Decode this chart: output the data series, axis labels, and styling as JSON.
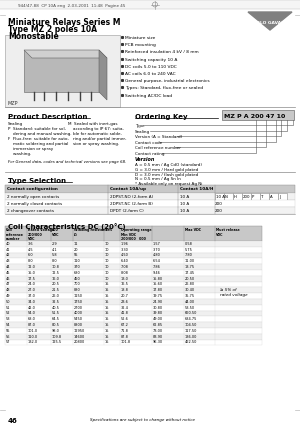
{
  "title_line1": "Miniature Relays Series M",
  "title_line2": "Type MZ 2 poles 10A",
  "title_line3": "Monostable",
  "header_file": "944/47-88  CP 10A eng  2-03-2001  11:48  Pagine 45",
  "logo_text": "CARLO GAVAZZI",
  "bullet_points": [
    "Miniature size",
    "PCB mounting",
    "Reinforced insulation 4 kV / 8 mm",
    "Switching capacity 10 A",
    "DC coils 5.0 to 110 VDC",
    "AC coils 6.0 to 240 VAC",
    "General purpose, industrial electronics",
    "Types: Standard, flux-free or sealed",
    "Switching AC/DC load"
  ],
  "relay_label": "MZP",
  "product_desc_title": "Product Description",
  "product_desc_col1": [
    "Sealing",
    "P  Standard: suitable for sol-",
    "    dering and manual washing.",
    "F  Flux-free: suitable for auto-",
    "    matic soldering and partial",
    "    immersion or spray",
    "    washing."
  ],
  "product_desc_col2": [
    "M  Sealed with inert-gas",
    "    according to IP 67: suita-",
    "    ble for automatic solde-",
    "    ring and/or partial immer-",
    "    sion or spray washing."
  ],
  "general_note": "For General data, codes and technical versions see page 68.",
  "ordering_key_title": "Ordering Key",
  "ordering_key_example": "MZ P A 200 47 10",
  "ordering_fields": [
    "Type",
    "Sealing",
    "Version (A = Standard)",
    "Contact code",
    "Coil reference number",
    "Contact rating"
  ],
  "version_title": "Version",
  "version_items": [
    "A = 0.5 mm / Ag CdO (standard)",
    "G = 3.0 mm / Hard gold plated",
    "D = 3.0 mm / flash gold plated",
    "N = 0.5 mm / Ag Sn In",
    "* Available only on request Ag Ni"
  ],
  "type_sel_title": "Type Selection",
  "type_col1_header": "Contact configuration",
  "type_col2_header": "Contact 10A/up",
  "type_col3_header": "Contact 10A/H",
  "type_sel_rows": [
    [
      "2 normally open contacts",
      "2DPST-NO (2-form A)",
      "10 A",
      "10 A",
      "N",
      "H",
      "200",
      "P",
      "T",
      "A",
      "J"
    ],
    [
      "2 normally closed contacts",
      "2DPST-NC (2-form B)",
      "10 A",
      "200",
      "",
      "",
      "",
      "",
      "",
      "",
      ""
    ],
    [
      "2 changeover contacts",
      "DPDT (2-form C)",
      "10 A",
      "200",
      "",
      "",
      "",
      "",
      "",
      "",
      ""
    ]
  ],
  "coil_char_title": "Coil Characteristics DC (20°C)",
  "coil_col_headers": [
    "Coil\nreference\nnumber",
    "Rated Voltage\n200/000\nVDC",
    "000\nVDC",
    "Winding resistance\nΩ",
    "± %",
    "Operating range\nMin VDC\n200/000",
    "000",
    "Max VDC",
    "Must release\nVDC"
  ],
  "coil_rows": [
    [
      "40",
      "3.6",
      "2.9",
      "11",
      "10",
      "1.96",
      "1.57",
      "0.58"
    ],
    [
      "41",
      "4.5",
      "4.1",
      "20",
      "10",
      "3.30",
      "3.70",
      "5.75"
    ],
    [
      "42",
      "6.0",
      "5.8",
      "55",
      "10",
      "4.50",
      "4.80",
      "7.80"
    ],
    [
      "43",
      "8.0",
      "8.0",
      "110",
      "10",
      "6.40",
      "6.54",
      "11.00"
    ],
    [
      "44",
      "12.0",
      "10.8",
      "370",
      "10",
      "7.08",
      "7.86",
      "13.75"
    ],
    [
      "45",
      "15.0",
      "12.5",
      "680",
      "10",
      "8.08",
      "9.46",
      "17.45"
    ],
    [
      "46",
      "17.5",
      "16.0",
      "450",
      "10",
      "13.0",
      "15.80",
      "20.50"
    ],
    [
      "47",
      "24.0",
      "20.5",
      "700",
      "15",
      "16.5",
      "15.60",
      "26.80"
    ],
    [
      "48",
      "27.0",
      "21.5",
      "880",
      "15",
      "18.8",
      "17.80",
      "30.40"
    ],
    [
      "49",
      "37.0",
      "26.0",
      "1150",
      "15",
      "20.7",
      "19.75",
      "35.75"
    ],
    [
      "50",
      "34.0",
      "32.5",
      "1750",
      "15",
      "23.6",
      "24.90",
      "44.00"
    ],
    [
      "51",
      "42.0",
      "40.5",
      "2700",
      "15",
      "32.4",
      "30.80",
      "53.50"
    ],
    [
      "52",
      "54.0",
      "51.5",
      "4000",
      "15",
      "41.8",
      "39.80",
      "660.50"
    ],
    [
      "53",
      "68.0",
      "64.5",
      "5450",
      "15",
      "52.6",
      "49.00",
      "684.75"
    ],
    [
      "54",
      "87.0",
      "80.5",
      "8800",
      "15",
      "67.2",
      "62.85",
      "104.50"
    ],
    [
      "55",
      "101.0",
      "98.0",
      "12950",
      "15",
      "71.8",
      "73.00",
      "117.50"
    ],
    [
      "56",
      "110.0",
      "109.8",
      "14600",
      "15",
      "87.8",
      "83.90",
      "136.00"
    ],
    [
      "57",
      "132.0",
      "125.5",
      "20800",
      "15",
      "101.8",
      "96.30",
      "462.50"
    ]
  ],
  "coil_note": "≥ 5% of\nrated voltage",
  "page_num": "46",
  "footer_note": "Specifications are subject to change without notice",
  "bg_color": "#ffffff"
}
